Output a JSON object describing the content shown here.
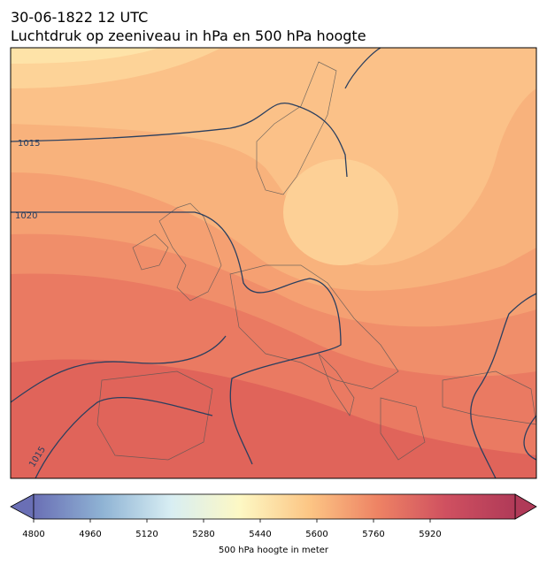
{
  "header": {
    "title": "30-06-1822 12 UTC",
    "subtitle": "Luchtdruk op zeeniveau in hPa en 500 hPa hoogte"
  },
  "map": {
    "isobar_labels": [
      "1015",
      "1020",
      "1015"
    ]
  },
  "colorbar": {
    "label": "500 hPa hoogte in meter",
    "lim": [
      4800,
      6160
    ],
    "ticks": [
      4800,
      4960,
      5120,
      5280,
      5440,
      5600,
      5760,
      5920
    ],
    "colormap": [
      "#6a6fb5",
      "#8fb3d4",
      "#d8eef3",
      "#fdf8c4",
      "#fcc685",
      "#ee8364",
      "#cf5060",
      "#b03a58"
    ]
  }
}
